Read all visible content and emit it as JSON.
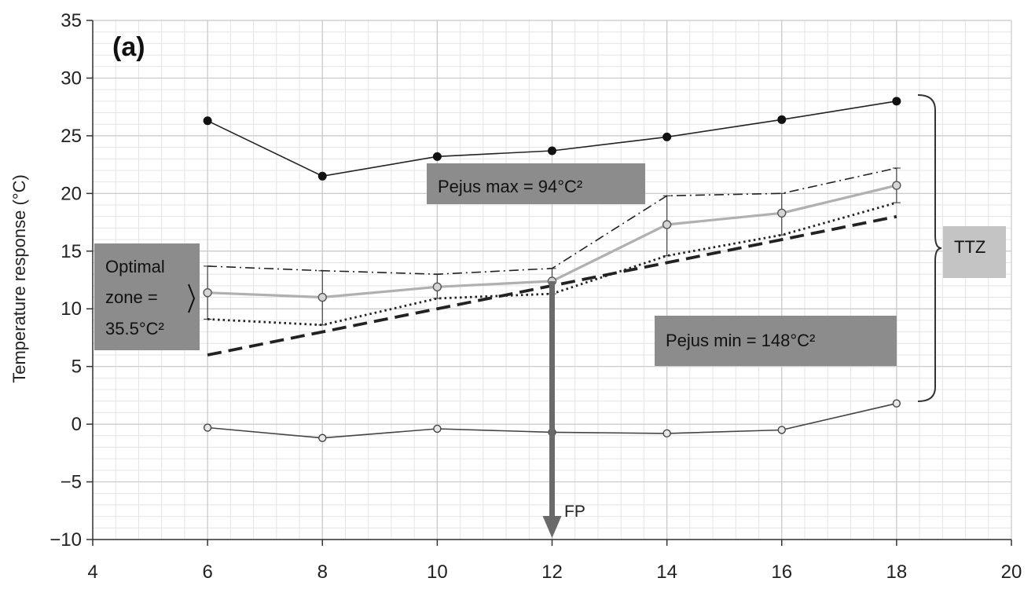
{
  "chart_data": {
    "type": "line",
    "panel_label": "(a)",
    "ylabel": "Temperature response (°C)",
    "xlim": [
      4,
      20
    ],
    "ylim": [
      -10,
      35
    ],
    "x_ticks": [
      "4",
      "6",
      "8",
      "10",
      "12",
      "14",
      "16",
      "18",
      "20"
    ],
    "y_ticks": [
      "35",
      "30",
      "25",
      "20",
      "15",
      "10",
      "5",
      "0",
      "−5",
      "−10"
    ],
    "grid": true,
    "series": [
      {
        "x": [
          6,
          8,
          10,
          12,
          14,
          16,
          18
        ],
        "y": [
          26.3,
          21.5,
          23.2,
          23.7,
          24.9,
          26.4,
          28.0
        ],
        "style": "solid-black-filled-markers",
        "color": "#222222"
      },
      {
        "x": [
          6,
          8,
          10,
          12,
          14,
          16,
          18
        ],
        "y": [
          -0.3,
          -1.2,
          -0.4,
          -0.7,
          -0.8,
          -0.5,
          1.8
        ],
        "style": "solid-thin-open-markers",
        "color": "#444444"
      },
      {
        "x": [
          6,
          8,
          10,
          12,
          14,
          16,
          18
        ],
        "y": [
          11.4,
          11.0,
          11.9,
          12.4,
          17.3,
          18.3,
          20.7
        ],
        "style": "solid-gray-open-markers",
        "color": "#b0b0b0",
        "error_high": [
          13.7,
          13.3,
          13.0,
          13.5,
          19.8,
          20.0,
          22.2
        ],
        "error_low": [
          9.1,
          8.6,
          10.9,
          11.3,
          14.6,
          16.4,
          19.2
        ]
      },
      {
        "x": [
          6,
          8,
          10,
          12,
          14,
          16,
          18
        ],
        "y": [
          13.7,
          13.3,
          13.0,
          13.5,
          19.8,
          20.0,
          22.2
        ],
        "style": "dash-dot",
        "color": "#222222"
      },
      {
        "x": [
          6,
          8,
          10,
          12,
          14,
          16,
          18
        ],
        "y": [
          9.1,
          8.6,
          10.9,
          11.3,
          14.6,
          16.4,
          19.2
        ],
        "style": "dotted",
        "color": "#222222"
      },
      {
        "x": [
          6,
          8,
          10,
          12,
          14,
          16,
          18
        ],
        "y": [
          6.0,
          8.0,
          10.0,
          12.0,
          14.0,
          16.0,
          18.0
        ],
        "style": "dashed",
        "color": "#222222"
      }
    ],
    "annotations": {
      "pejus_max": "Pejus max = 94°C²",
      "pejus_min": "Pejus min = 148°C²",
      "optimal_line1": "Optimal",
      "optimal_line2": "zone =",
      "optimal_line3": "35.5°C²",
      "ttz": "TTZ",
      "fp": "FP",
      "fp_x": 12,
      "fp_from_y": 12.4
    }
  }
}
